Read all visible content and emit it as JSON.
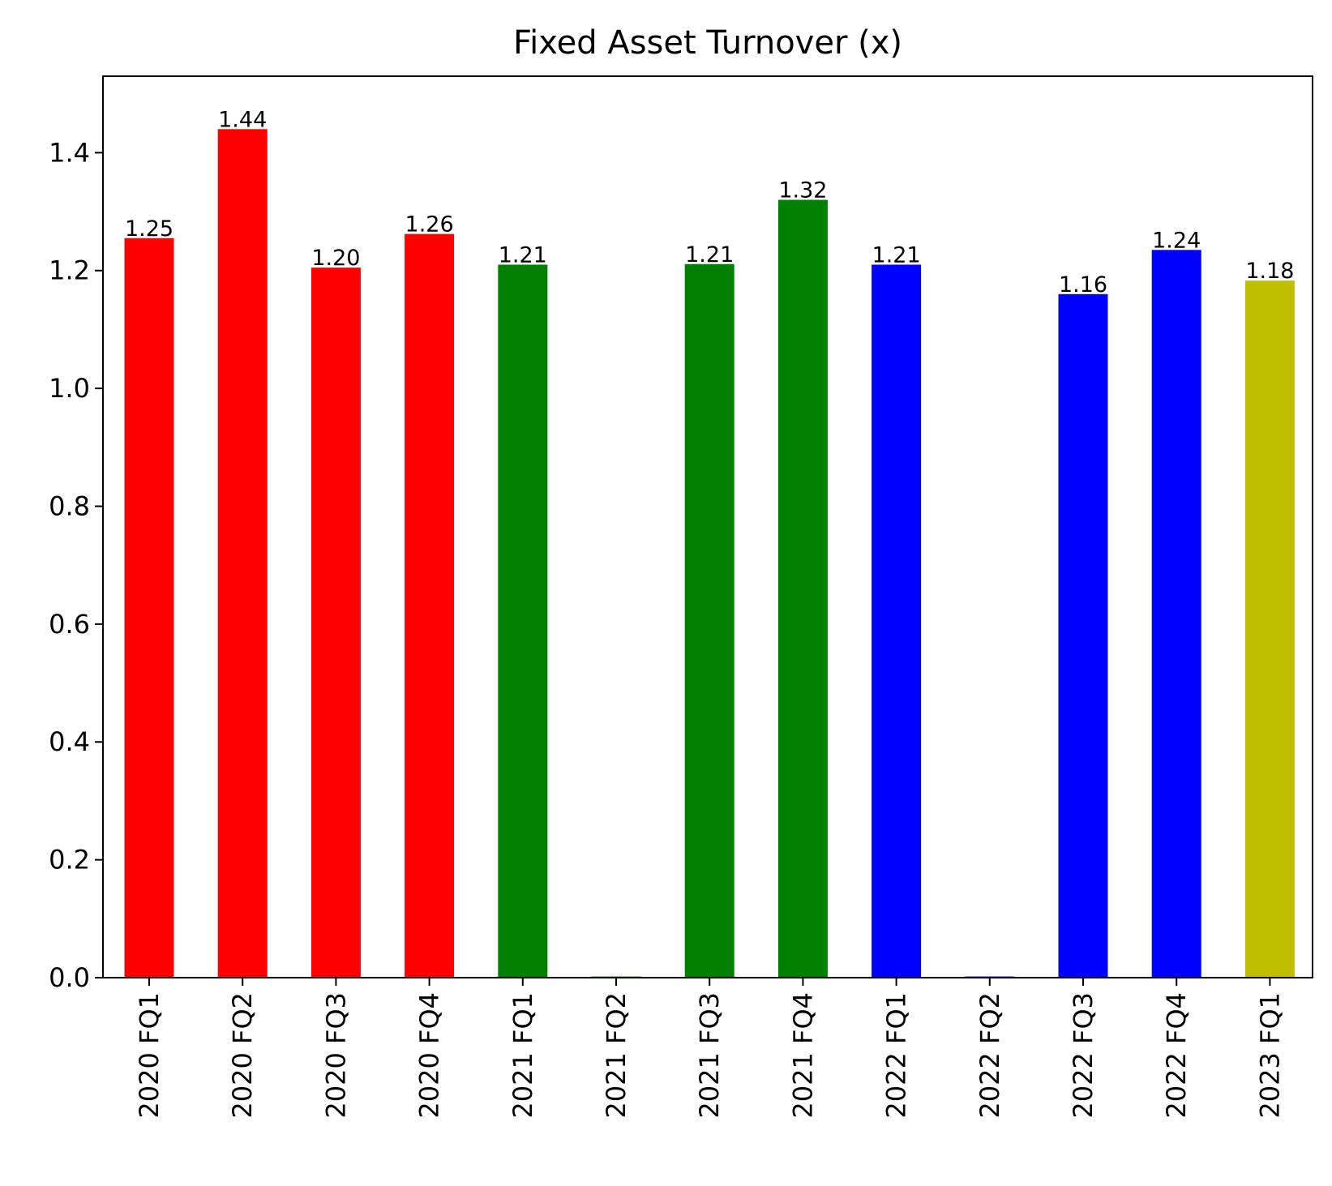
{
  "chart_data": {
    "type": "bar",
    "title": "Fixed Asset Turnover (x)",
    "xlabel": "",
    "ylabel": "",
    "ylim": [
      0,
      1.5
    ],
    "yticks": [
      0.0,
      0.2,
      0.4,
      0.6,
      0.8,
      1.0,
      1.2,
      1.4
    ],
    "ytick_labels": [
      "0.0",
      "0.2",
      "0.4",
      "0.6",
      "0.8",
      "1.0",
      "1.2",
      "1.4"
    ],
    "grid": false,
    "categories": [
      "2020 FQ1",
      "2020 FQ2",
      "2020 FQ3",
      "2020 FQ4",
      "2021 FQ1",
      "2021 FQ2",
      "2021 FQ3",
      "2021 FQ4",
      "2022 FQ1",
      "2022 FQ2",
      "2022 FQ3",
      "2022 FQ4",
      "2023 FQ1"
    ],
    "values": [
      1.255,
      1.44,
      1.205,
      1.262,
      1.21,
      0.002,
      1.211,
      1.32,
      1.21,
      0.002,
      1.16,
      1.235,
      1.183
    ],
    "data_labels": [
      "1.25",
      "1.44",
      "1.20",
      "1.26",
      "1.21",
      "",
      "1.21",
      "1.32",
      "1.21",
      "",
      "1.16",
      "1.24",
      "1.18"
    ],
    "colors": [
      "#ff0000",
      "#ff0000",
      "#ff0000",
      "#ff0000",
      "#008000",
      "#008000",
      "#008000",
      "#008000",
      "#0000ff",
      "#0000ff",
      "#0000ff",
      "#0000ff",
      "#bfbf00"
    ]
  }
}
